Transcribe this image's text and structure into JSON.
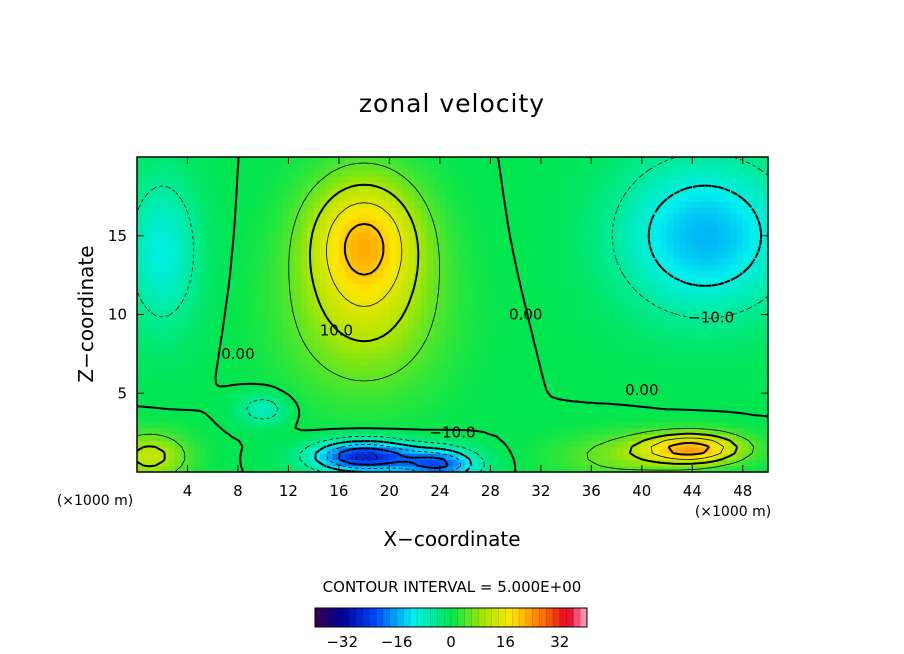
{
  "chart_data": {
    "type": "heatmap",
    "title": "zonal velocity",
    "xlabel": "X−coordinate",
    "ylabel": "Z−coordinate",
    "x_unit": "(×1000 m)",
    "y_unit": "(×1000 m)",
    "xlim": [
      0,
      50
    ],
    "ylim": [
      0,
      20
    ],
    "xticks": [
      4,
      8,
      12,
      16,
      20,
      24,
      28,
      32,
      36,
      40,
      44,
      48
    ],
    "yticks": [
      5,
      10,
      15
    ],
    "contour_interval_text": "CONTOUR INTERVAL = 5.000E+00",
    "contour_labels": [
      {
        "text": "10.0",
        "x": 15.8,
        "y": 9.0
      },
      {
        "text": "0.00",
        "x": 8.0,
        "y": 7.5
      },
      {
        "text": "0.00",
        "x": 30.8,
        "y": 10.0
      },
      {
        "text": "−10.0",
        "x": 45.5,
        "y": 9.8
      },
      {
        "text": "0.00",
        "x": 40.0,
        "y": 5.2
      },
      {
        "text": "−10.0",
        "x": 25.0,
        "y": 2.5
      }
    ],
    "colorbar": {
      "min": -40,
      "max": 40,
      "ticks": [
        -32,
        -16,
        0,
        16,
        32
      ],
      "tick_labels": [
        "−32",
        "−16",
        "0",
        "16",
        "32"
      ]
    },
    "features": [
      {
        "x": 18,
        "z": 15,
        "value": 18,
        "sx": 4.5,
        "sz": 4
      },
      {
        "x": 18,
        "z": 10,
        "value": 10,
        "sx": 6,
        "sz": 5
      },
      {
        "x": 18,
        "z": 1,
        "value": -27,
        "sx": 4,
        "sz": 1
      },
      {
        "x": 24,
        "z": 0.5,
        "value": -20,
        "sx": 3,
        "sz": 1
      },
      {
        "x": 10,
        "z": 4,
        "value": -8,
        "sx": 2,
        "sz": 1
      },
      {
        "x": 45,
        "z": 15,
        "value": -15,
        "sx": 7,
        "sz": 5
      },
      {
        "x": 2,
        "z": 14,
        "value": -10,
        "sx": 3,
        "sz": 5
      },
      {
        "x": 44,
        "z": 1.5,
        "value": 22,
        "sx": 4,
        "sz": 1
      },
      {
        "x": 1,
        "z": 1,
        "value": 12,
        "sx": 3,
        "sz": 1.5
      },
      {
        "x": 38,
        "z": 1,
        "value": 6,
        "sx": 5,
        "sz": 1.5
      }
    ]
  }
}
